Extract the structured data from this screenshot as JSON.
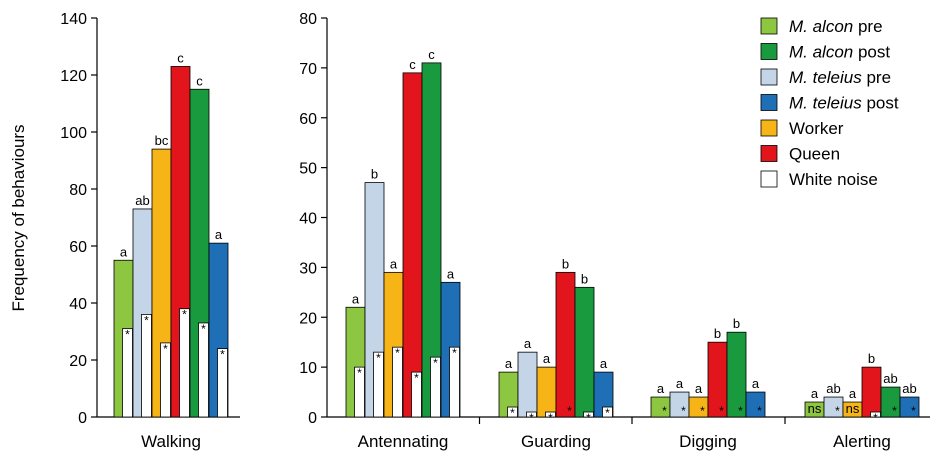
{
  "chart_data": {
    "type": "bar",
    "ylabel": "Frequency of behaviours",
    "legend_position": "top-right",
    "grid": false,
    "series": [
      {
        "name_species": "M. alcon",
        "name_suffix": " pre",
        "color": "#8dc641"
      },
      {
        "name_species": "M. alcon",
        "name_suffix": " post",
        "color": "#1a9a3f"
      },
      {
        "name_species": "M. teleius",
        "name_suffix": " pre",
        "color": "#c5d5e8"
      },
      {
        "name_species": "M. teleius",
        "name_suffix": " post",
        "color": "#1f6fb6"
      },
      {
        "name_species": "",
        "name_suffix": "Worker",
        "color": "#f6b417"
      },
      {
        "name_species": "",
        "name_suffix": "Queen",
        "color": "#e3151c"
      },
      {
        "name_species": "",
        "name_suffix": "White noise",
        "color": "#ffffff"
      }
    ],
    "panels": [
      {
        "ylim": [
          0,
          140
        ],
        "yticks": [
          "0",
          "20",
          "40",
          "60",
          "80",
          "100",
          "120",
          "140"
        ],
        "categories": [
          {
            "label": "Walking",
            "bars": [
              {
                "series": 0,
                "value": 55,
                "letter": "a",
                "noise": 31,
                "noise_mark": "*"
              },
              {
                "series": 2,
                "value": 73,
                "letter": "ab",
                "noise": 36,
                "noise_mark": "*"
              },
              {
                "series": 4,
                "value": 94,
                "letter": "bc",
                "noise": 26,
                "noise_mark": "*"
              },
              {
                "series": 5,
                "value": 123,
                "letter": "c",
                "noise": 38,
                "noise_mark": "*"
              },
              {
                "series": 1,
                "value": 115,
                "letter": "c",
                "noise": 33,
                "noise_mark": "*"
              },
              {
                "series": 3,
                "value": 61,
                "letter": "a",
                "noise": 24,
                "noise_mark": "*"
              }
            ]
          }
        ]
      },
      {
        "ylim": [
          0,
          80
        ],
        "yticks": [
          "0",
          "10",
          "20",
          "30",
          "40",
          "50",
          "60",
          "70",
          "80"
        ],
        "categories": [
          {
            "label": "Antennating",
            "bars": [
              {
                "series": 0,
                "value": 22,
                "letter": "a",
                "noise": 10,
                "noise_mark": "*"
              },
              {
                "series": 2,
                "value": 47,
                "letter": "b",
                "noise": 13,
                "noise_mark": "*"
              },
              {
                "series": 4,
                "value": 29,
                "letter": "a",
                "noise": 14,
                "noise_mark": "*"
              },
              {
                "series": 5,
                "value": 69,
                "letter": "c",
                "noise": 9,
                "noise_mark": "*"
              },
              {
                "series": 1,
                "value": 71,
                "letter": "c",
                "noise": 12,
                "noise_mark": "*"
              },
              {
                "series": 3,
                "value": 27,
                "letter": "a",
                "noise": 14,
                "noise_mark": "*"
              }
            ]
          },
          {
            "label": "Guarding",
            "bars": [
              {
                "series": 0,
                "value": 9,
                "letter": "a",
                "noise": 2,
                "noise_mark": "*"
              },
              {
                "series": 2,
                "value": 13,
                "letter": "a",
                "noise": 1,
                "noise_mark": "*"
              },
              {
                "series": 4,
                "value": 10,
                "letter": "a",
                "noise": 1,
                "noise_mark": "*"
              },
              {
                "series": 5,
                "value": 29,
                "letter": "b",
                "noise": 0,
                "noise_mark": "*"
              },
              {
                "series": 1,
                "value": 26,
                "letter": "b",
                "noise": 1,
                "noise_mark": "*"
              },
              {
                "series": 3,
                "value": 9,
                "letter": "a",
                "noise": 2,
                "noise_mark": "*"
              }
            ]
          },
          {
            "label": "Digging",
            "bars": [
              {
                "series": 0,
                "value": 4,
                "letter": "a",
                "noise": 0,
                "noise_mark": "*"
              },
              {
                "series": 2,
                "value": 5,
                "letter": "a",
                "noise": 0,
                "noise_mark": "*"
              },
              {
                "series": 4,
                "value": 4,
                "letter": "a",
                "noise": 0,
                "noise_mark": "*"
              },
              {
                "series": 5,
                "value": 15,
                "letter": "b",
                "noise": 0,
                "noise_mark": "*"
              },
              {
                "series": 1,
                "value": 17,
                "letter": "b",
                "noise": 0,
                "noise_mark": "*"
              },
              {
                "series": 3,
                "value": 5,
                "letter": "a",
                "noise": 0,
                "noise_mark": "*"
              }
            ]
          },
          {
            "label": "Alerting",
            "bars": [
              {
                "series": 0,
                "value": 3,
                "letter": "a",
                "noise": 0,
                "noise_mark": "ns"
              },
              {
                "series": 2,
                "value": 4,
                "letter": "ab",
                "noise": 0,
                "noise_mark": "*"
              },
              {
                "series": 4,
                "value": 3,
                "letter": "a",
                "noise": 0,
                "noise_mark": "ns"
              },
              {
                "series": 5,
                "value": 10,
                "letter": "b",
                "noise": 1,
                "noise_mark": "*"
              },
              {
                "series": 1,
                "value": 6,
                "letter": "ab",
                "noise": 0,
                "noise_mark": "*"
              },
              {
                "series": 3,
                "value": 4,
                "letter": "ab",
                "noise": 0,
                "noise_mark": "*"
              }
            ]
          }
        ]
      }
    ]
  }
}
